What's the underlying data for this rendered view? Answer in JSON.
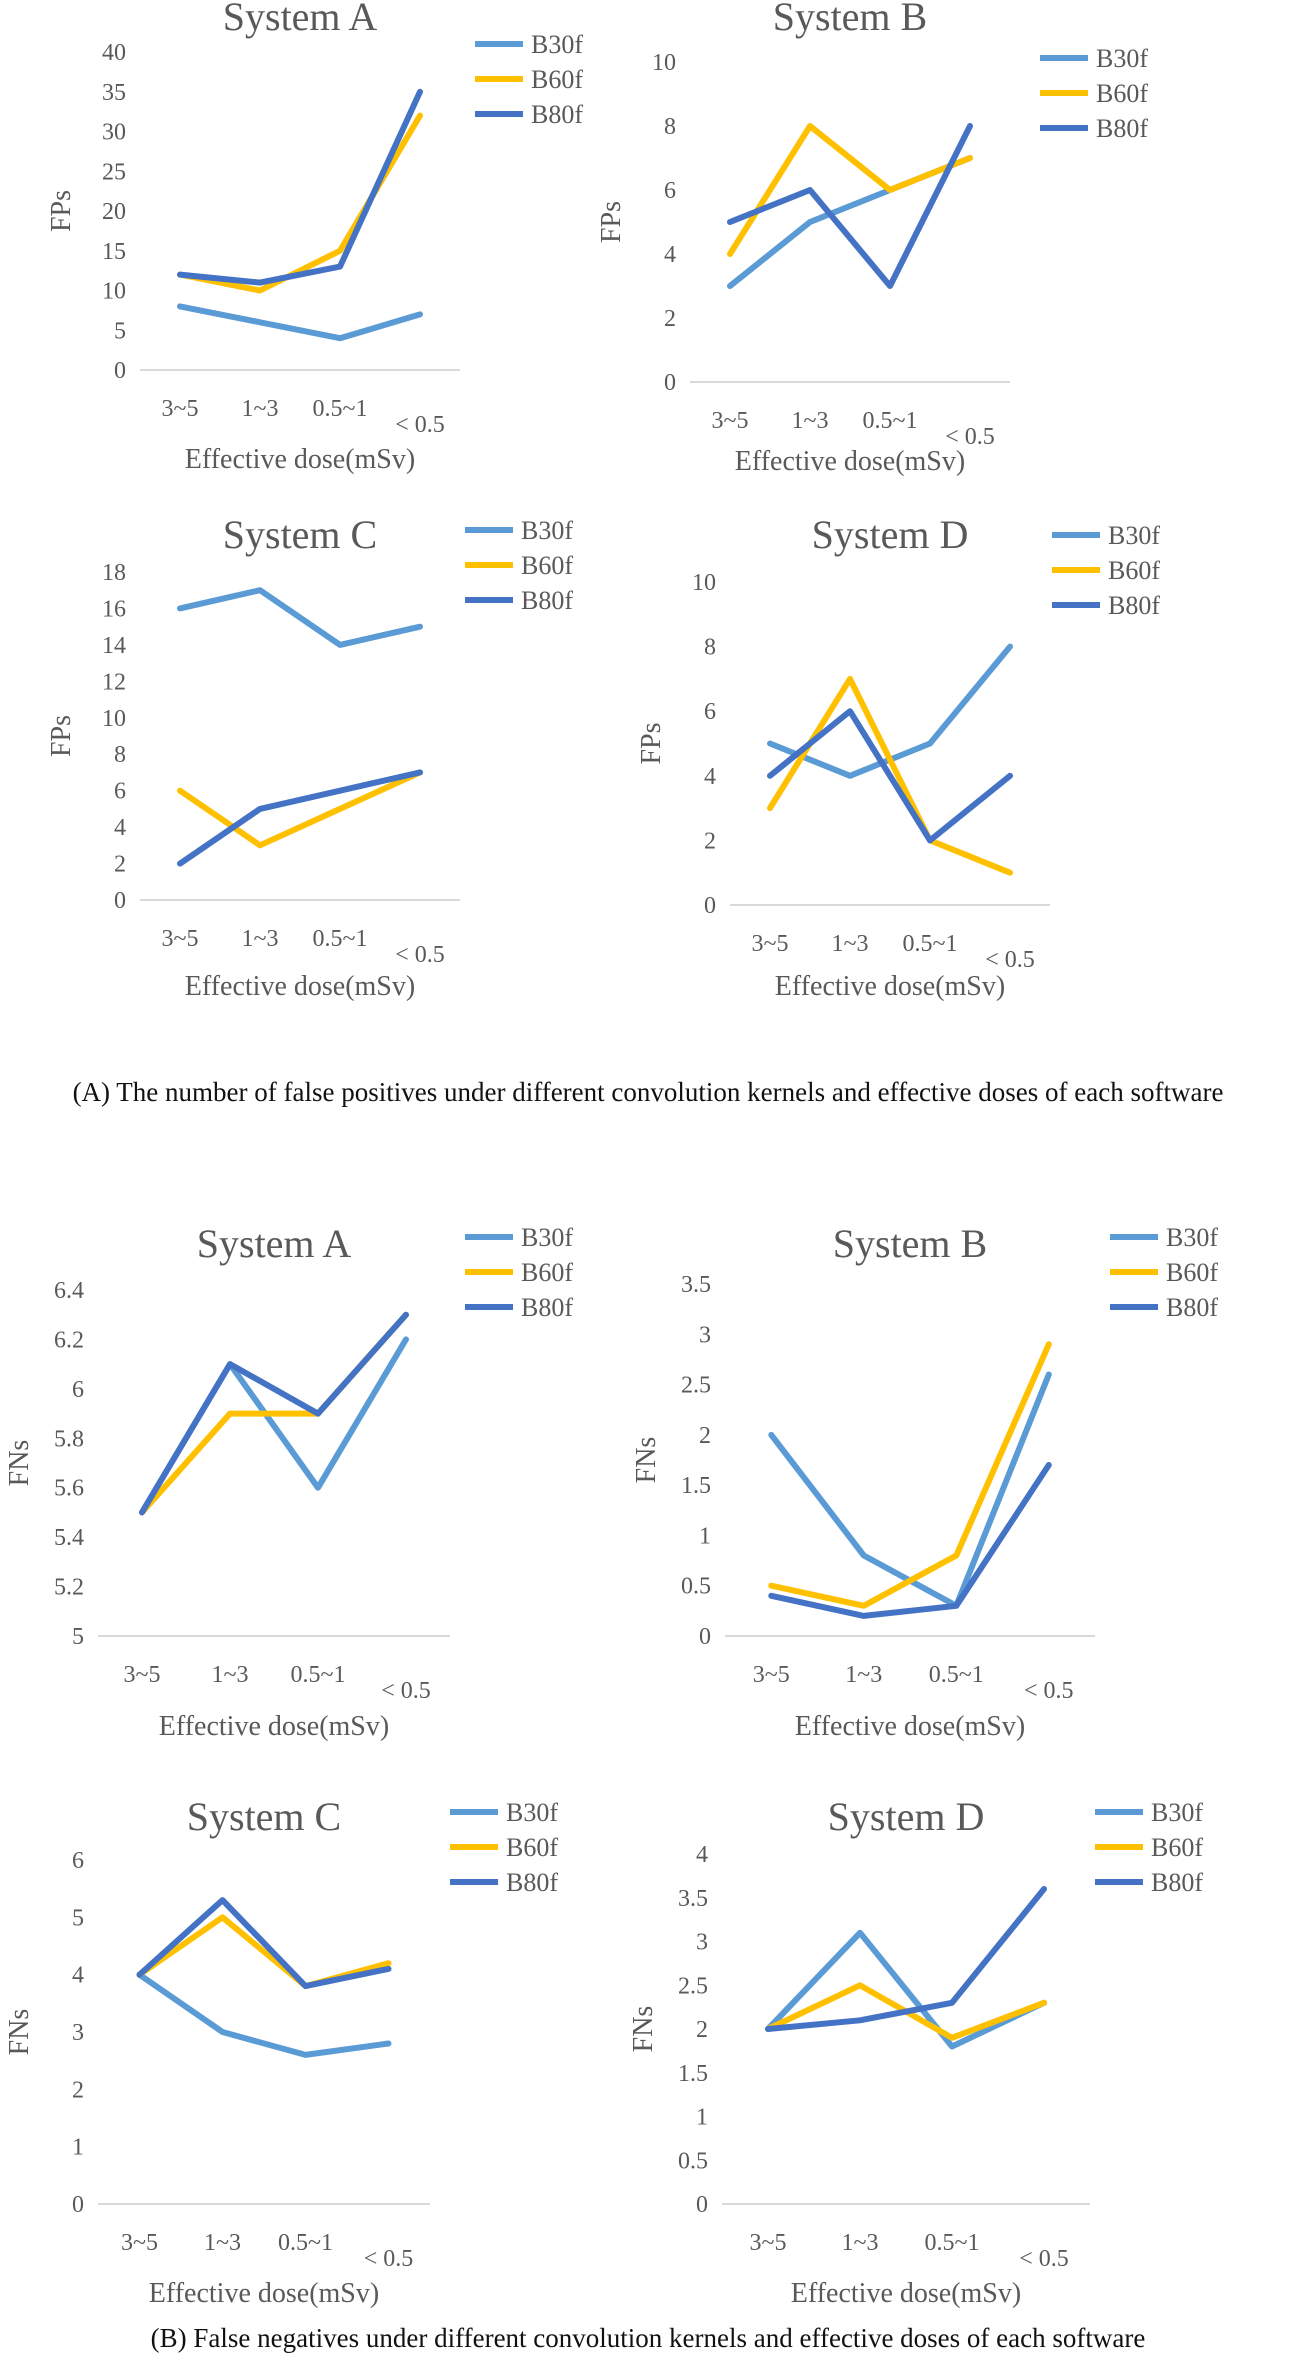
{
  "figure": {
    "caption_a": "(A) The number of false positives under different convolution kernels and effective doses of each software",
    "caption_b": "(B) False negatives under different convolution kernels and effective doses of each software"
  },
  "colors": {
    "B30f": "#5B9BD5",
    "B60f": "#FFC000",
    "B80f": "#4472C4",
    "axis": "#d9d9d9",
    "text": "#595959"
  },
  "chart_data": [
    {
      "id": "fp-a",
      "type": "line",
      "title": "System A",
      "xlabel": "Effective dose(mSv)",
      "ylabel": "FPs",
      "categories": [
        "3~5",
        "1~3",
        "0.5~1",
        "< 0.5"
      ],
      "ylim": [
        0,
        40
      ],
      "yticks": [
        "0",
        "5",
        "10",
        "15",
        "20",
        "25",
        "30",
        "35",
        "40"
      ],
      "series": [
        {
          "name": "B30f",
          "values": [
            8,
            6,
            4,
            7
          ]
        },
        {
          "name": "B60f",
          "values": [
            12,
            10,
            15,
            32
          ]
        },
        {
          "name": "B80f",
          "values": [
            12,
            11,
            13,
            35
          ]
        }
      ]
    },
    {
      "id": "fp-b",
      "type": "line",
      "title": "System B",
      "xlabel": "Effective dose(mSv)",
      "ylabel": "FPs",
      "categories": [
        "3~5",
        "1~3",
        "0.5~1",
        "< 0.5"
      ],
      "ylim": [
        0,
        10
      ],
      "yticks": [
        "0",
        "2",
        "4",
        "6",
        "8",
        "10"
      ],
      "series": [
        {
          "name": "B30f",
          "values": [
            3,
            5,
            6,
            7
          ]
        },
        {
          "name": "B60f",
          "values": [
            4,
            8,
            6,
            7
          ]
        },
        {
          "name": "B80f",
          "values": [
            5,
            6,
            3,
            8
          ]
        }
      ]
    },
    {
      "id": "fp-c",
      "type": "line",
      "title": "System C",
      "xlabel": "Effective dose(mSv)",
      "ylabel": "FPs",
      "categories": [
        "3~5",
        "1~3",
        "0.5~1",
        "< 0.5"
      ],
      "ylim": [
        0,
        18
      ],
      "yticks": [
        "0",
        "2",
        "4",
        "6",
        "8",
        "10",
        "12",
        "14",
        "16",
        "18"
      ],
      "series": [
        {
          "name": "B30f",
          "values": [
            16,
            17,
            14,
            15
          ]
        },
        {
          "name": "B60f",
          "values": [
            6,
            3,
            5,
            7
          ]
        },
        {
          "name": "B80f",
          "values": [
            2,
            5,
            6,
            7
          ]
        }
      ]
    },
    {
      "id": "fp-d",
      "type": "line",
      "title": "System D",
      "xlabel": "Effective dose(mSv)",
      "ylabel": "FPs",
      "categories": [
        "3~5",
        "1~3",
        "0.5~1",
        "< 0.5"
      ],
      "ylim": [
        0,
        10
      ],
      "yticks": [
        "0",
        "2",
        "4",
        "6",
        "8",
        "10"
      ],
      "series": [
        {
          "name": "B30f",
          "values": [
            5,
            4,
            5,
            8
          ]
        },
        {
          "name": "B60f",
          "values": [
            3,
            7,
            2,
            1
          ]
        },
        {
          "name": "B80f",
          "values": [
            4,
            6,
            2,
            4
          ]
        }
      ]
    },
    {
      "id": "fn-a",
      "type": "line",
      "title": "System A",
      "xlabel": "Effective dose(mSv)",
      "ylabel": "FNs",
      "categories": [
        "3~5",
        "1~3",
        "0.5~1",
        "< 0.5"
      ],
      "ylim": [
        5,
        6.4
      ],
      "yticks": [
        "5",
        "5.2",
        "5.4",
        "5.6",
        "5.8",
        "6",
        "6.2",
        "6.4"
      ],
      "series": [
        {
          "name": "B30f",
          "values": [
            5.5,
            6.1,
            5.6,
            6.2
          ]
        },
        {
          "name": "B60f",
          "values": [
            5.5,
            5.9,
            5.9,
            6.3
          ]
        },
        {
          "name": "B80f",
          "values": [
            5.5,
            6.1,
            5.9,
            6.3
          ]
        }
      ]
    },
    {
      "id": "fn-b",
      "type": "line",
      "title": "System B",
      "xlabel": "Effective dose(mSv)",
      "ylabel": "FNs",
      "categories": [
        "3~5",
        "1~3",
        "0.5~1",
        "< 0.5"
      ],
      "ylim": [
        0,
        3.5
      ],
      "yticks": [
        "0",
        "0.5",
        "1",
        "1.5",
        "2",
        "2.5",
        "3",
        "3.5"
      ],
      "series": [
        {
          "name": "B30f",
          "values": [
            2.0,
            0.8,
            0.3,
            2.6
          ]
        },
        {
          "name": "B60f",
          "values": [
            0.5,
            0.3,
            0.8,
            2.9
          ]
        },
        {
          "name": "B80f",
          "values": [
            0.4,
            0.2,
            0.3,
            1.7
          ]
        }
      ]
    },
    {
      "id": "fn-c",
      "type": "line",
      "title": "System C",
      "xlabel": "Effective dose(mSv)",
      "ylabel": "FNs",
      "categories": [
        "3~5",
        "1~3",
        "0.5~1",
        "< 0.5"
      ],
      "ylim": [
        0,
        6
      ],
      "yticks": [
        "0",
        "1",
        "2",
        "3",
        "4",
        "5",
        "6"
      ],
      "series": [
        {
          "name": "B30f",
          "values": [
            4.0,
            3.0,
            2.6,
            2.8
          ]
        },
        {
          "name": "B60f",
          "values": [
            4.0,
            5.0,
            3.8,
            4.2
          ]
        },
        {
          "name": "B80f",
          "values": [
            4.0,
            5.3,
            3.8,
            4.1
          ]
        }
      ]
    },
    {
      "id": "fn-d",
      "type": "line",
      "title": "System D",
      "xlabel": "Effective dose(mSv)",
      "ylabel": "FNs",
      "categories": [
        "3~5",
        "1~3",
        "0.5~1",
        "< 0.5"
      ],
      "ylim": [
        0,
        4
      ],
      "yticks": [
        "0",
        "0.5",
        "1",
        "1.5",
        "2",
        "2.5",
        "3",
        "3.5",
        "4"
      ],
      "series": [
        {
          "name": "B30f",
          "values": [
            2.0,
            3.1,
            1.8,
            2.3
          ]
        },
        {
          "name": "B60f",
          "values": [
            2.0,
            2.5,
            1.9,
            2.3
          ]
        },
        {
          "name": "B80f",
          "values": [
            2.0,
            2.1,
            2.3,
            3.6
          ]
        }
      ]
    }
  ]
}
